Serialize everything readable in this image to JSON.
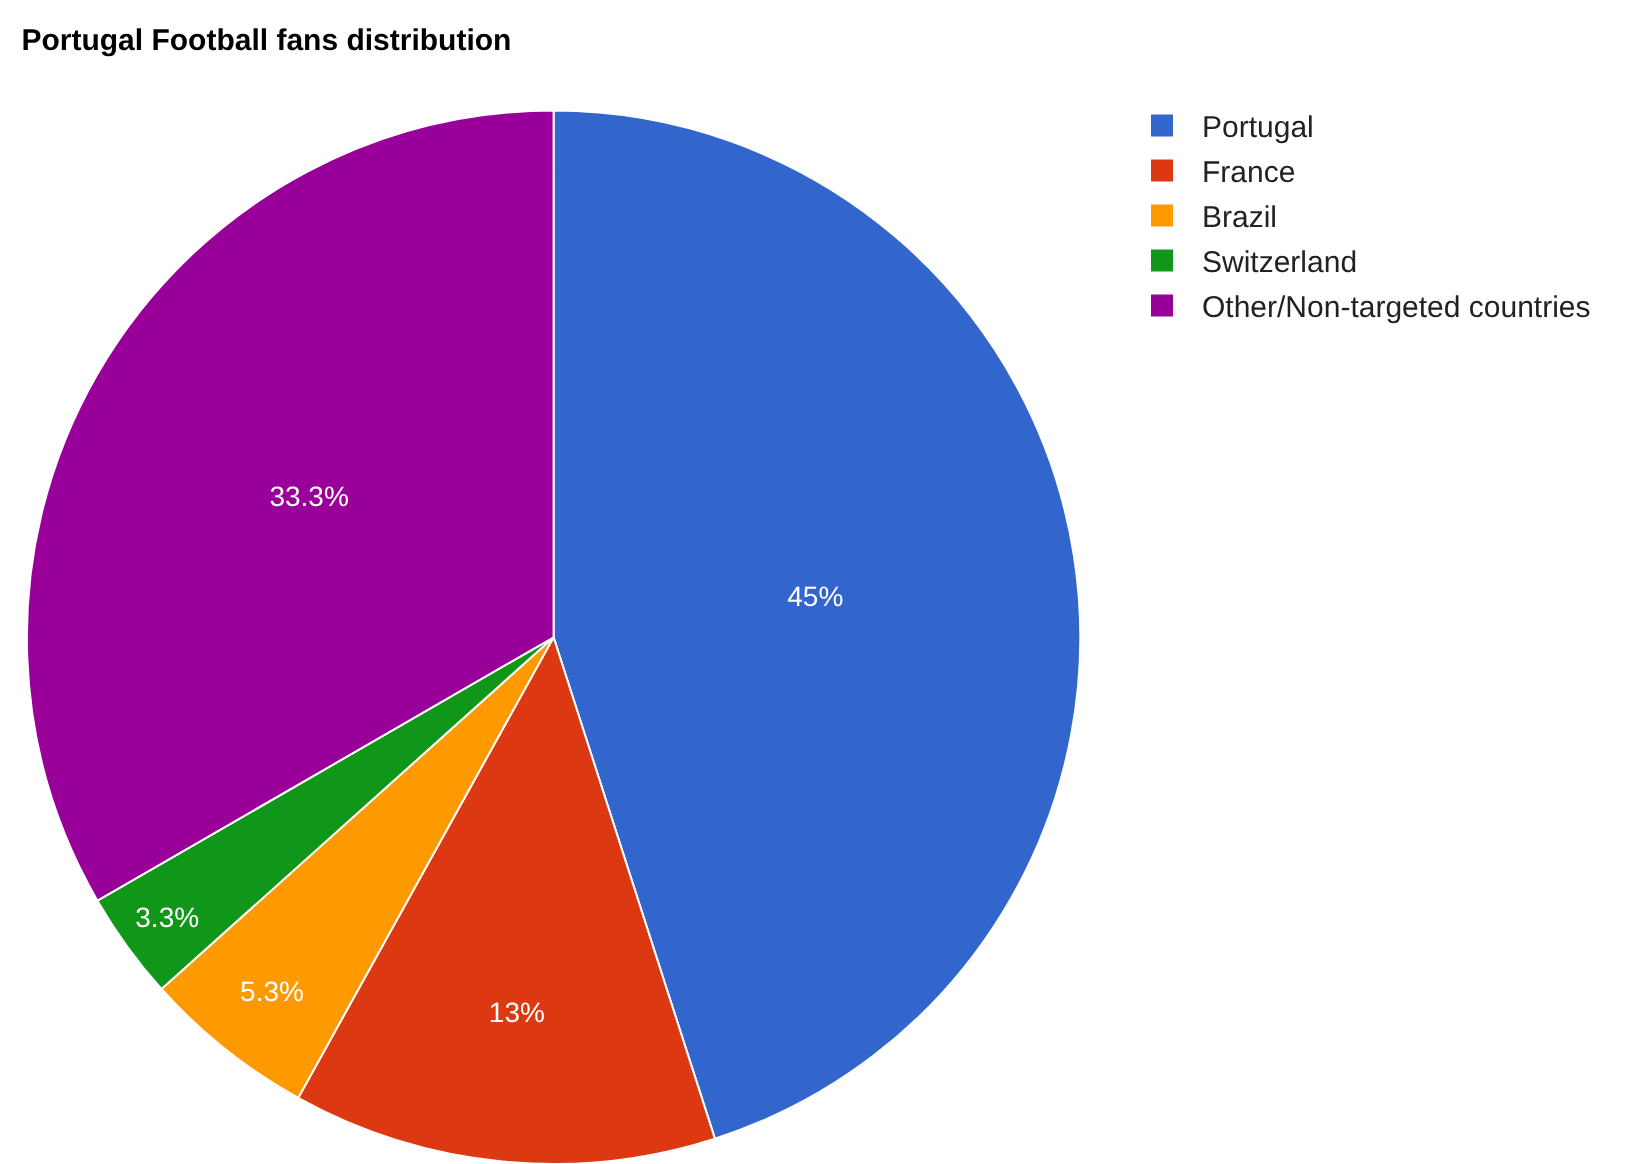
{
  "chart_data": {
    "type": "pie",
    "title": "Portugal Football fans distribution",
    "categories": [
      "Portugal",
      "France",
      "Brazil",
      "Switzerland",
      "Other/Non-targeted countries"
    ],
    "values": [
      45,
      13,
      5.3,
      3.3,
      33.3
    ],
    "value_labels": [
      "45%",
      "13%",
      "5.3%",
      "3.3%",
      "33.3%"
    ],
    "colors": [
      "#3366cc",
      "#dc3912",
      "#ff9900",
      "#109618",
      "#990099"
    ],
    "legend": "top right"
  }
}
